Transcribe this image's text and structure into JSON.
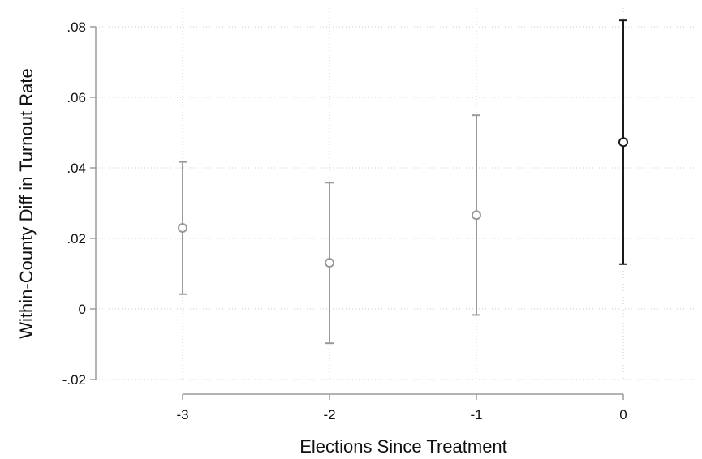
{
  "chart_data": {
    "type": "scatter",
    "xlabel": "Elections Since Treatment",
    "ylabel": "Within-County Diff in Turnout Rate",
    "xlim": [
      -3.5,
      0.5
    ],
    "ylim": [
      -0.02,
      0.08
    ],
    "x_ticks": [
      -3,
      -2,
      -1,
      0
    ],
    "x_tick_labels": [
      "-3",
      "-2",
      "-1",
      "0"
    ],
    "y_ticks": [
      -0.02,
      0,
      0.02,
      0.04,
      0.06,
      0.08
    ],
    "y_tick_labels": [
      "-.02",
      "0",
      ".02",
      ".04",
      ".06",
      ".08"
    ],
    "grid": true,
    "points": [
      {
        "x": -3,
        "y": 0.023,
        "lower": 0.0042,
        "upper": 0.0417,
        "color": "#9a9a9a"
      },
      {
        "x": -2,
        "y": 0.0131,
        "lower": -0.0097,
        "upper": 0.0358,
        "color": "#9a9a9a"
      },
      {
        "x": -1,
        "y": 0.0266,
        "lower": -0.0017,
        "upper": 0.0549,
        "color": "#9a9a9a"
      },
      {
        "x": 0,
        "y": 0.0473,
        "lower": 0.0127,
        "upper": 0.0818,
        "color": "#1a1a1a"
      }
    ],
    "colors": {
      "axis": "#9a9a9a",
      "grid": "#c8c8c8",
      "pre_treatment": "#9a9a9a",
      "treatment": "#1a1a1a"
    }
  }
}
